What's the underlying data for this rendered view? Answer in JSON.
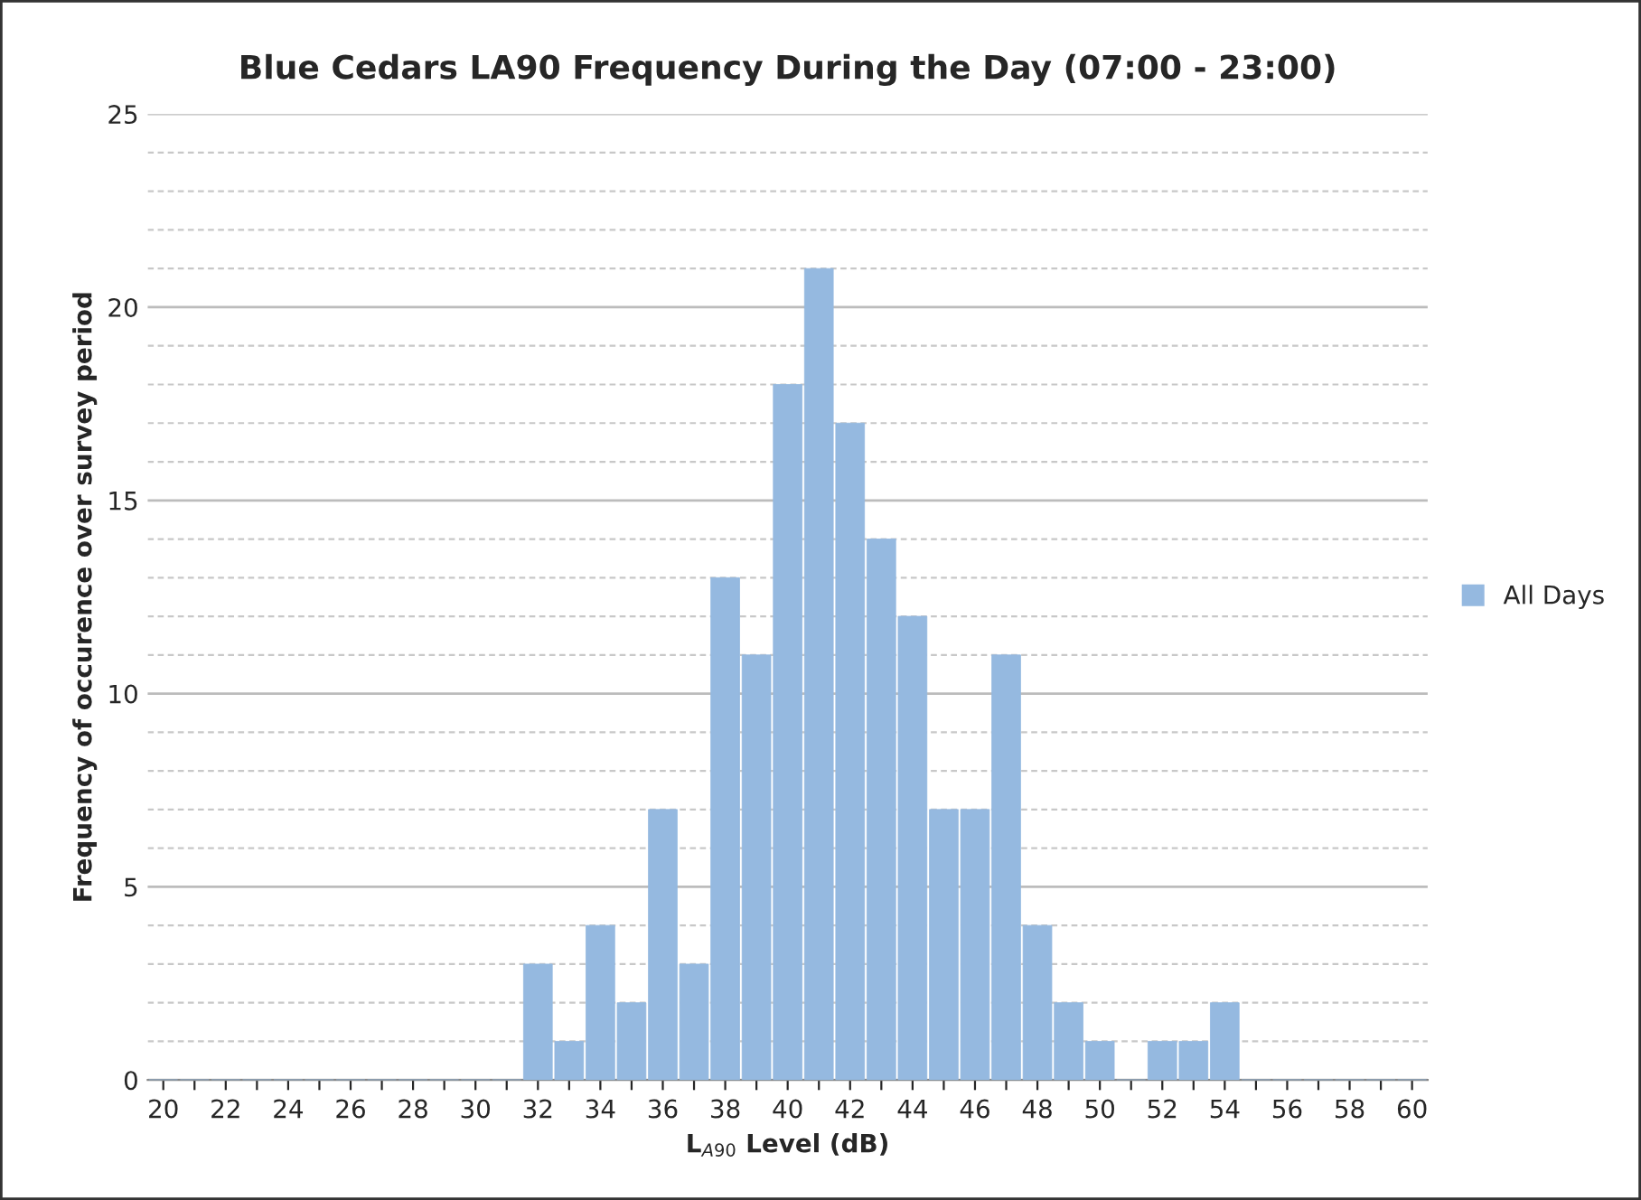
{
  "chart_data": {
    "type": "bar",
    "title": "Blue Cedars LA90 Frequency During the Day (07:00 - 23:00)",
    "xlabel": "L$_{A90}$ Level (dB)",
    "ylabel": "Frequency of occurence over survey period",
    "categories": [
      "20",
      null,
      "22",
      null,
      "24",
      null,
      "26",
      null,
      "28",
      null,
      "30",
      null,
      "32",
      null,
      "34",
      null,
      "36",
      null,
      "38",
      null,
      "40",
      null,
      "42",
      null,
      "44",
      null,
      "46",
      null,
      "48",
      null,
      "50",
      null,
      "52",
      null,
      "54",
      null,
      "56",
      null,
      "58",
      null,
      "60"
    ],
    "series": [
      {
        "name": "All Days",
        "color": "#95b9e0",
        "values": [
          0,
          0,
          0,
          0,
          0,
          0,
          0,
          0,
          0,
          0,
          0,
          0,
          3,
          1,
          4,
          2,
          7,
          3,
          13,
          11,
          18,
          21,
          17,
          14,
          12,
          7,
          7,
          11,
          4,
          2,
          1,
          0,
          1,
          1,
          2,
          0,
          0,
          0,
          0,
          0,
          0
        ]
      }
    ],
    "ylim": [
      0,
      25
    ],
    "yticks": [
      0,
      {
        "value": 1,
        "label": null
      },
      {
        "value": 2,
        "label": null
      },
      {
        "value": 3,
        "label": null
      },
      {
        "value": 4,
        "label": null
      },
      5,
      {
        "value": 6,
        "label": null
      },
      {
        "value": 7,
        "label": null
      },
      {
        "value": 8,
        "label": null
      },
      {
        "value": 9,
        "label": null
      },
      10,
      {
        "value": 11,
        "label": null
      },
      {
        "value": 12,
        "label": null
      },
      {
        "value": 13,
        "label": null
      },
      {
        "value": 14,
        "label": null
      },
      15,
      {
        "value": 16,
        "label": null
      },
      {
        "value": 17,
        "label": null
      },
      {
        "value": 18,
        "label": null
      },
      {
        "value": 19,
        "label": null
      },
      20,
      {
        "value": 21,
        "label": null
      },
      {
        "value": 22,
        "label": null
      },
      {
        "value": 23,
        "label": null
      },
      {
        "value": 24,
        "label": null
      },
      25
    ],
    "grid": "y",
    "legend": "right"
  }
}
